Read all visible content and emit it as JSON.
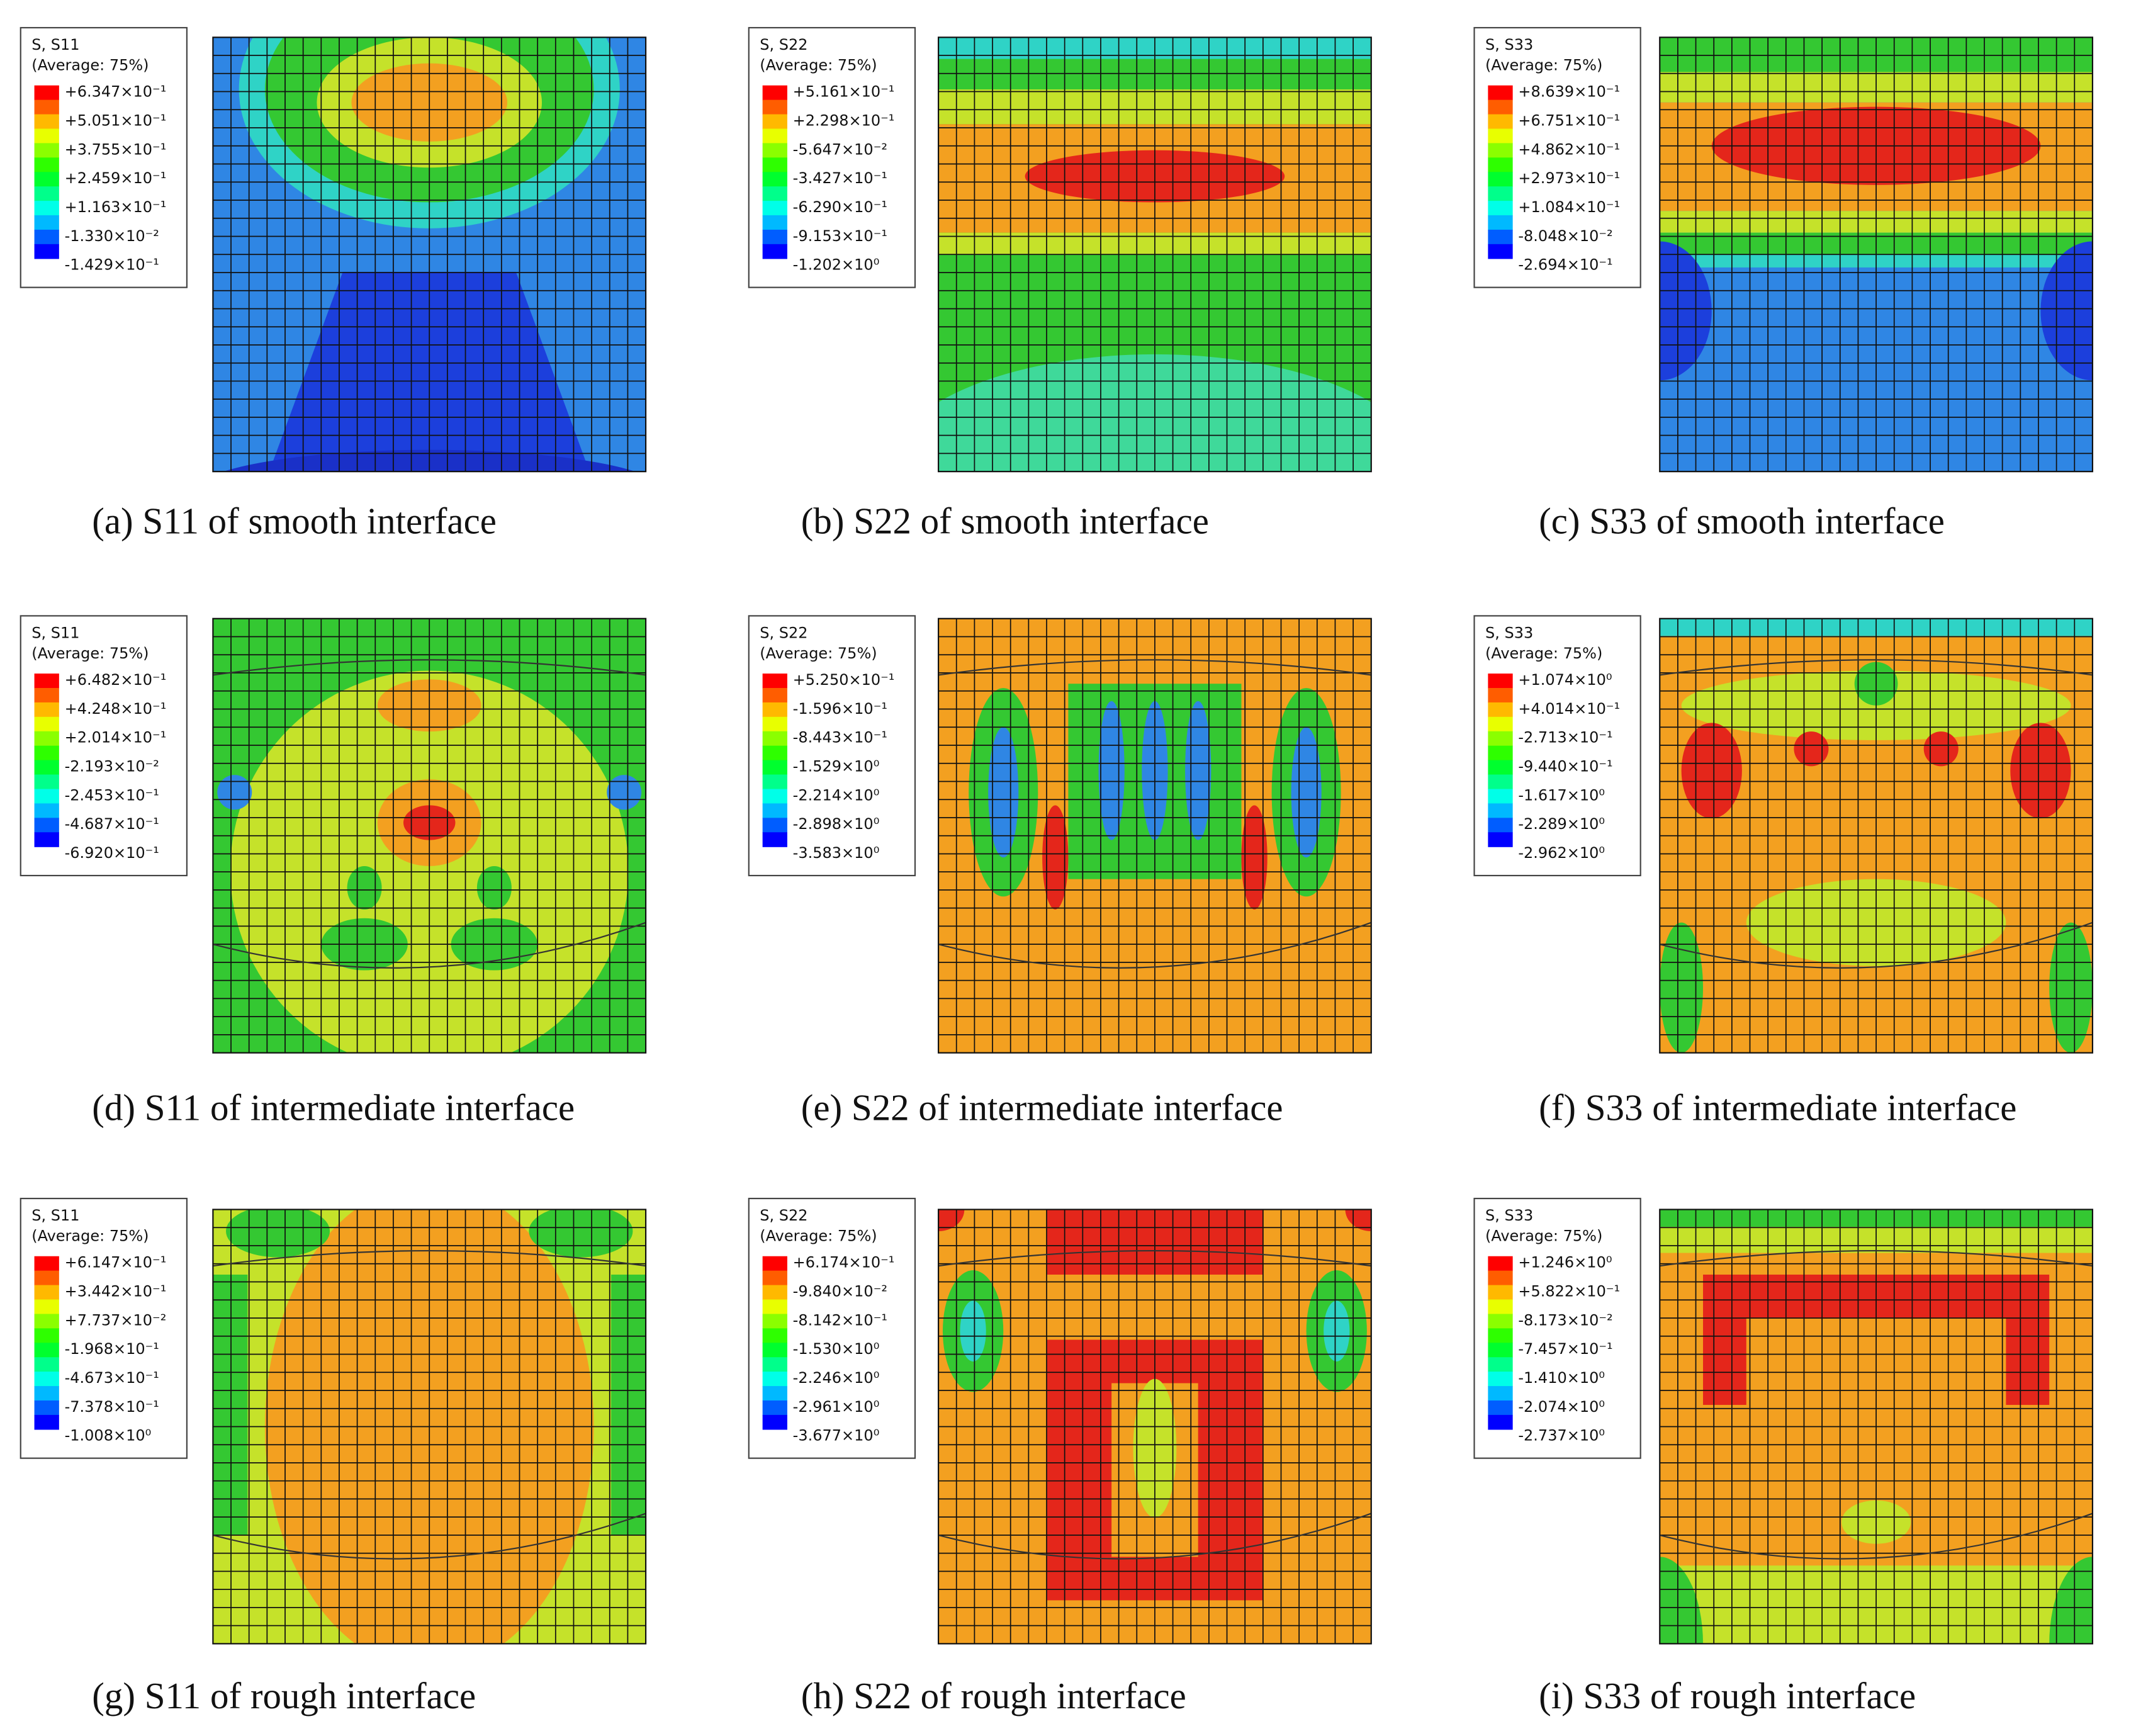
{
  "panels": [
    {
      "legend_title": "S, S11",
      "legend_subtitle": "(Average: 75%)",
      "legend_labels": [
        "+6.347×10⁻¹",
        "+5.051×10⁻¹",
        "+3.755×10⁻¹",
        "+2.459×10⁻¹",
        "+1.163×10⁻¹",
        "-1.330×10⁻²",
        "-1.429×10⁻¹"
      ],
      "caption": "(a) S11 of smooth interface"
    },
    {
      "legend_title": "S, S22",
      "legend_subtitle": "(Average: 75%)",
      "legend_labels": [
        "+5.161×10⁻¹",
        "+2.298×10⁻¹",
        "-5.647×10⁻²",
        "-3.427×10⁻¹",
        "-6.290×10⁻¹",
        "-9.153×10⁻¹",
        "-1.202×10⁰"
      ],
      "caption": "(b) S22 of smooth interface"
    },
    {
      "legend_title": "S, S33",
      "legend_subtitle": "(Average: 75%)",
      "legend_labels": [
        "+8.639×10⁻¹",
        "+6.751×10⁻¹",
        "+4.862×10⁻¹",
        "+2.973×10⁻¹",
        "+1.084×10⁻¹",
        "-8.048×10⁻²",
        "-2.694×10⁻¹"
      ],
      "caption": "(c) S33 of smooth interface"
    },
    {
      "legend_title": "S, S11",
      "legend_subtitle": "(Average: 75%)",
      "legend_labels": [
        "+6.482×10⁻¹",
        "+4.248×10⁻¹",
        "+2.014×10⁻¹",
        "-2.193×10⁻²",
        "-2.453×10⁻¹",
        "-4.687×10⁻¹",
        "-6.920×10⁻¹"
      ],
      "caption": "(d) S11 of intermediate interface"
    },
    {
      "legend_title": "S, S22",
      "legend_subtitle": "(Average: 75%)",
      "legend_labels": [
        "+5.250×10⁻¹",
        "-1.596×10⁻¹",
        "-8.443×10⁻¹",
        "-1.529×10⁰",
        "-2.214×10⁰",
        "-2.898×10⁰",
        "-3.583×10⁰"
      ],
      "caption": "(e) S22 of intermediate interface"
    },
    {
      "legend_title": "S, S33",
      "legend_subtitle": "(Average: 75%)",
      "legend_labels": [
        "+1.074×10⁰",
        "+4.014×10⁻¹",
        "-2.713×10⁻¹",
        "-9.440×10⁻¹",
        "-1.617×10⁰",
        "-2.289×10⁰",
        "-2.962×10⁰"
      ],
      "caption": "(f) S33 of intermediate interface"
    },
    {
      "legend_title": "S, S11",
      "legend_subtitle": "(Average: 75%)",
      "legend_labels": [
        "+6.147×10⁻¹",
        "+3.442×10⁻¹",
        "+7.737×10⁻²",
        "-1.968×10⁻¹",
        "-4.673×10⁻¹",
        "-7.378×10⁻¹",
        "-1.008×10⁰"
      ],
      "caption": "(g) S11 of rough interface"
    },
    {
      "legend_title": "S, S22",
      "legend_subtitle": "(Average: 75%)",
      "legend_labels": [
        "+6.174×10⁻¹",
        "-9.840×10⁻²",
        "-8.142×10⁻¹",
        "-1.530×10⁰",
        "-2.246×10⁰",
        "-2.961×10⁰",
        "-3.677×10⁰"
      ],
      "caption": "(h) S22 of rough interface"
    },
    {
      "legend_title": "S, S33",
      "legend_subtitle": "(Average: 75%)",
      "legend_labels": [
        "+1.246×10⁰",
        "+5.822×10⁻¹",
        "-8.173×10⁻²",
        "-7.457×10⁻¹",
        "-1.410×10⁰",
        "-2.074×10⁰",
        "-2.737×10⁰"
      ],
      "caption": "(i) S33 of rough interface"
    }
  ]
}
